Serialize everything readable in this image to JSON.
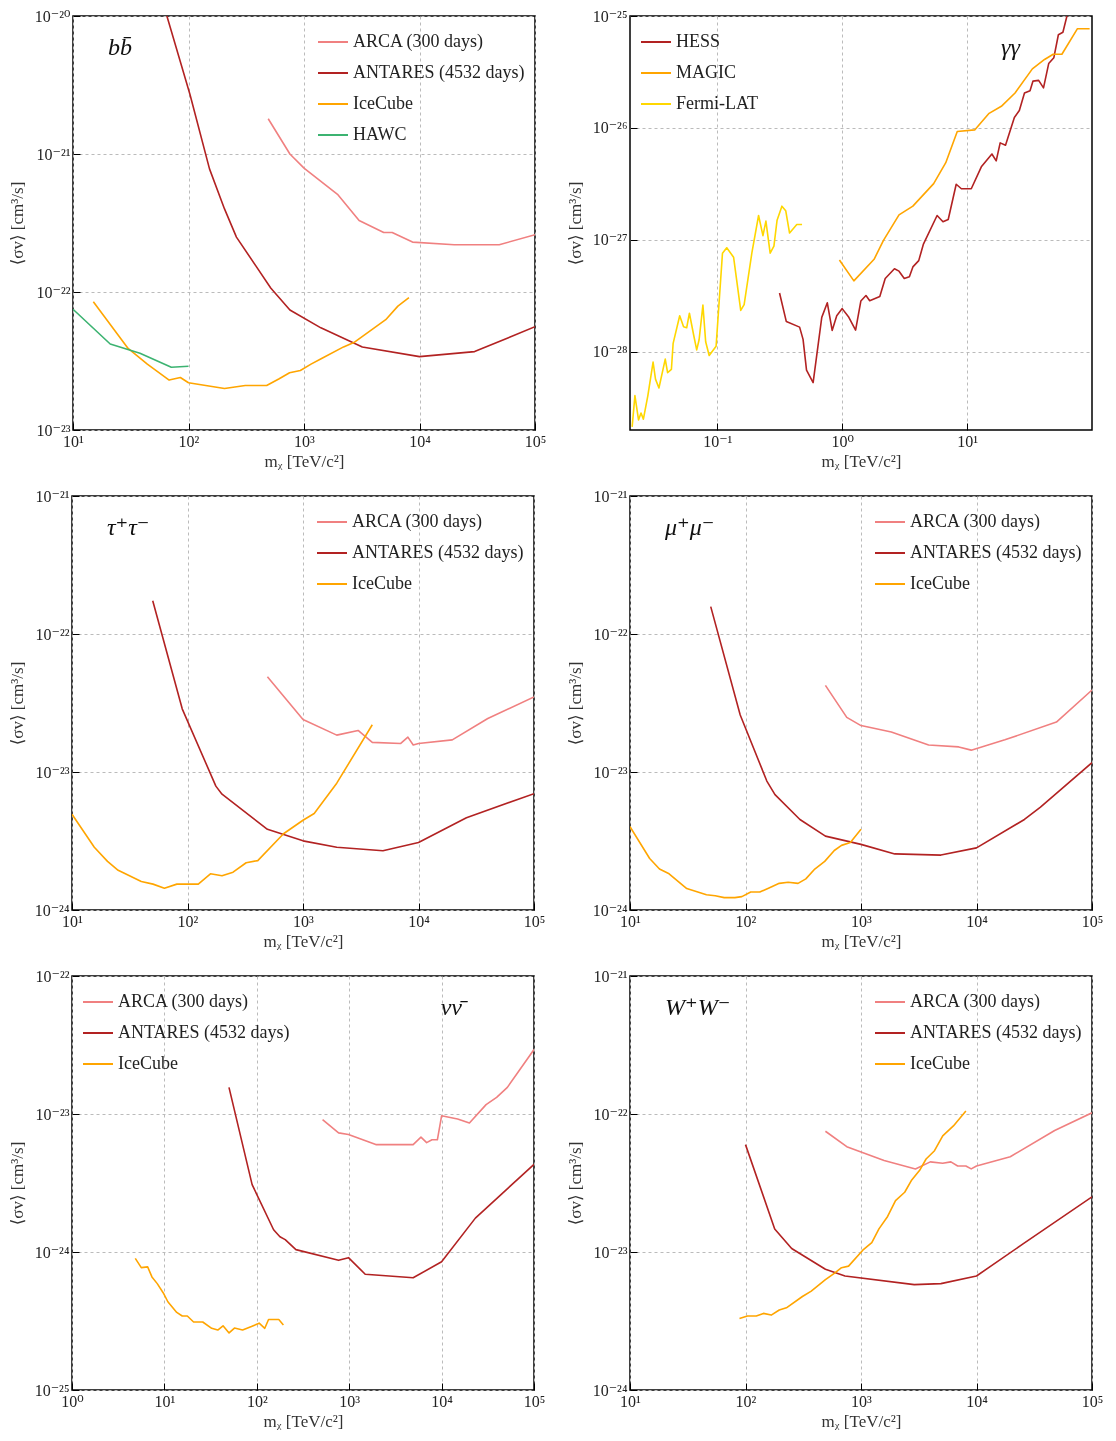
{
  "chart_data": [
    {
      "type": "line",
      "annotations": [
        "bb̄"
      ],
      "xlabel": "mᵪ [TeV/c²]",
      "ylabel": "⟨σv⟩ [cm³/s]",
      "log": "xy",
      "grid": true,
      "legend": "top right",
      "xlim": [
        10,
        100000
      ],
      "ylim": [
        1e-23,
        1e-20
      ],
      "xticks": [
        {
          "value": 10,
          "label": "10¹"
        },
        {
          "value": 100,
          "label": "10²"
        },
        {
          "value": 1000,
          "label": "10³"
        },
        {
          "value": 10000,
          "label": "10⁴"
        },
        {
          "value": 100000,
          "label": "10⁵"
        }
      ],
      "yticks": [
        {
          "value": 1e-23,
          "label": "10⁻²³"
        },
        {
          "value": 1e-22,
          "label": "10⁻²²"
        },
        {
          "value": 1e-21,
          "label": "10⁻²¹"
        },
        {
          "value": 1e-20,
          "label": "10⁻²⁰"
        }
      ],
      "series": [
        {
          "name": "ARCA (300 days)",
          "color": "#f08080",
          "x": [
            490,
            755,
            1000,
            1950,
            3000,
            4900,
            5800,
            8700,
            20000,
            49000,
            100000
          ],
          "values": [
            1.8e-21,
            1e-21,
            7.9e-22,
            5.1e-22,
            3.3e-22,
            2.7e-22,
            2.7e-22,
            2.3e-22,
            2.2e-22,
            2.2e-22,
            2.6e-22
          ]
        },
        {
          "name": "ANTARES (4532 days)",
          "color": "#b22222",
          "x": [
            65,
            103,
            152,
            205,
            260,
            515,
            755,
            1400,
            3200,
            10000,
            30000,
            100000
          ],
          "values": [
            1e-20,
            2.7e-21,
            7.8e-22,
            4e-22,
            2.5e-22,
            1.07e-22,
            7.4e-23,
            5.5e-23,
            4e-23,
            3.4e-23,
            3.7e-23,
            5.6e-23
          ]
        },
        {
          "name": "IceCube",
          "color": "#ffa500",
          "x": [
            15,
            30,
            44,
            68,
            85,
            100,
            205,
            310,
            475,
            610,
            750,
            930,
            1150,
            1420,
            2200,
            2700,
            5100,
            6500,
            8100
          ],
          "values": [
            8.5e-23,
            3.9e-23,
            3e-23,
            2.3e-23,
            2.4e-23,
            2.2e-23,
            2e-23,
            2.1e-23,
            2.1e-23,
            2.35e-23,
            2.6e-23,
            2.7e-23,
            3e-23,
            3.3e-23,
            4e-23,
            4.3e-23,
            6.3e-23,
            7.9e-23,
            9.1e-23
          ]
        },
        {
          "name": "HAWC",
          "color": "#3cb371",
          "x": [
            10,
            21,
            38,
            71,
            100
          ],
          "values": [
            7.5e-23,
            4.2e-23,
            3.6e-23,
            2.85e-23,
            2.9e-23
          ]
        }
      ]
    },
    {
      "type": "line",
      "annotations": [
        "γγ"
      ],
      "xlabel": "mᵪ [TeV/c²]",
      "ylabel": "⟨σv⟩ [cm³/s]",
      "log": "xy",
      "grid": true,
      "legend": "top left",
      "xlim": [
        0.02,
        100
      ],
      "ylim": [
        2e-29,
        1e-25
      ],
      "xticks": [
        {
          "value": 0.1,
          "label": "10⁻¹"
        },
        {
          "value": 1,
          "label": "10⁰"
        },
        {
          "value": 10,
          "label": "10¹"
        }
      ],
      "yticks": [
        {
          "value": 1e-28,
          "label": "10⁻²⁸"
        },
        {
          "value": 1e-27,
          "label": "10⁻²⁷"
        },
        {
          "value": 1e-26,
          "label": "10⁻²⁶"
        },
        {
          "value": 1e-25,
          "label": "10⁻²⁵"
        }
      ],
      "series": [
        {
          "name": "HESS",
          "color": "#b22222",
          "x": [
            0.315,
            0.357,
            0.456,
            0.486,
            0.518,
            0.585,
            0.686,
            0.76,
            0.831,
            0.904,
            1,
            1.13,
            1.28,
            1.41,
            1.55,
            1.66,
            2,
            2.21,
            2.62,
            2.85,
            3.14,
            3.45,
            3.68,
            4.1,
            4.46,
            5.75,
            6.41,
            7.06,
            8.18,
            9,
            10.8,
            13,
            15.8,
            17.1,
            18.4,
            20.3,
            23.9,
            26.2,
            28.8,
            31.9,
            33.7,
            37.4,
            40.9,
            45,
            49.5,
            53.8,
            58.5,
            63
          ],
          "values": [
            3.35e-28,
            1.86e-28,
            1.66e-28,
            1.29e-28,
            6.85e-29,
            5.3e-29,
            2.03e-28,
            2.74e-28,
            1.55e-28,
            2.1e-28,
            2.43e-28,
            2.03e-28,
            1.56e-28,
            2.84e-28,
            3.18e-28,
            2.86e-28,
            3.12e-28,
            4.52e-28,
            5.52e-28,
            5.25e-28,
            4.52e-28,
            4.69e-28,
            5.73e-28,
            6.52e-28,
            9.1e-28,
            1.65e-27,
            1.45e-27,
            1.52e-27,
            3.14e-27,
            2.86e-27,
            2.86e-27,
            4.49e-27,
            5.85e-27,
            5.07e-27,
            7.35e-27,
            7e-27,
            1.24e-26,
            1.43e-26,
            2.05e-26,
            2.15e-26,
            2.62e-26,
            2.66e-26,
            2.28e-26,
            3.76e-26,
            4.24e-26,
            6.8e-26,
            7.15e-26,
            1e-25
          ]
        },
        {
          "name": "MAGIC",
          "color": "#ffa500",
          "x": [
            0.95,
            1.24,
            1.8,
            2.14,
            2.85,
            3.68,
            5.4,
            6.75,
            8.34,
            11.5,
            15,
            18.8,
            24.2,
            33.3,
            41.7,
            48.9,
            57.4,
            76.5,
            95.7
          ],
          "values": [
            6.6e-28,
            4.3e-28,
            6.7e-28,
            9.9e-28,
            1.67e-27,
            2e-27,
            3.18e-27,
            4.89e-27,
            9.3e-27,
            9.6e-27,
            1.35e-26,
            1.56e-26,
            2.05e-26,
            3.37e-26,
            4.09e-26,
            4.55e-26,
            4.55e-26,
            7.7e-26,
            7.7e-26
          ]
        },
        {
          "name": "Fermi-LAT",
          "color": "#ffd700",
          "x": [
            0.0208,
            0.0219,
            0.0234,
            0.0245,
            0.0256,
            0.0278,
            0.0306,
            0.032,
            0.0341,
            0.0383,
            0.04,
            0.0429,
            0.0443,
            0.05,
            0.0537,
            0.0569,
            0.0598,
            0.0646,
            0.0684,
            0.0715,
            0.0767,
            0.0807,
            0.0861,
            0.0978,
            0.11,
            0.119,
            0.135,
            0.154,
            0.164,
            0.189,
            0.214,
            0.232,
            0.245,
            0.265,
            0.284,
            0.301,
            0.329,
            0.353,
            0.379,
            0.433,
            0.477
          ],
          "values": [
            2.13e-29,
            4.06e-29,
            2.46e-29,
            2.84e-29,
            2.5e-29,
            4.06e-29,
            8.1e-29,
            5.7e-29,
            4.75e-29,
            8.6e-29,
            6.5e-29,
            6.95e-29,
            1.19e-28,
            2.1e-28,
            1.67e-28,
            1.64e-28,
            2.21e-28,
            1.42e-28,
            1.04e-28,
            1.28e-28,
            2.61e-28,
            1.23e-28,
            9.25e-29,
            1.12e-28,
            7.6e-28,
            8.5e-28,
            7e-28,
            2.34e-28,
            2.64e-28,
            7.6e-28,
            1.65e-27,
            1.09e-27,
            1.47e-27,
            7.6e-28,
            8.8e-28,
            1.5e-27,
            2e-27,
            1.82e-27,
            1.15e-27,
            1.37e-27,
            1.37e-27
          ]
        }
      ]
    },
    {
      "type": "line",
      "annotations": [
        "τ⁺τ⁻"
      ],
      "xlabel": "mᵪ [TeV/c²]",
      "ylabel": "⟨σv⟩ [cm³/s]",
      "log": "xy",
      "grid": true,
      "legend": "top right",
      "xlim": [
        10,
        100000
      ],
      "ylim": [
        1e-24,
        1e-21
      ],
      "xticks": [
        {
          "value": 10,
          "label": "10¹"
        },
        {
          "value": 100,
          "label": "10²"
        },
        {
          "value": 1000,
          "label": "10³"
        },
        {
          "value": 10000,
          "label": "10⁴"
        },
        {
          "value": 100000,
          "label": "10⁵"
        }
      ],
      "yticks": [
        {
          "value": 1e-24,
          "label": "10⁻²⁴"
        },
        {
          "value": 1e-23,
          "label": "10⁻²³"
        },
        {
          "value": 1e-22,
          "label": "10⁻²²"
        },
        {
          "value": 1e-21,
          "label": "10⁻²¹"
        }
      ],
      "series": [
        {
          "name": "ARCA (300 days)",
          "color": "#f08080",
          "x": [
            492,
            1000,
            1960,
            3000,
            3980,
            7020,
            8090,
            9000,
            10000,
            19600,
            39800,
            100000
          ],
          "values": [
            4.9e-23,
            2.4e-23,
            1.85e-23,
            2e-23,
            1.64e-23,
            1.61e-23,
            1.79e-23,
            1.57e-23,
            1.61e-23,
            1.71e-23,
            2.44e-23,
            3.5e-23
          ]
        },
        {
          "name": "ANTARES (4532 days)",
          "color": "#b22222",
          "x": [
            50,
            90,
            176,
            199,
            492,
            1000,
            1960,
            4920,
            10000,
            26000,
            100000
          ],
          "values": [
            1.74e-22,
            2.87e-23,
            7.9e-24,
            6.9e-24,
            3.84e-24,
            3.17e-24,
            2.85e-24,
            2.69e-24,
            3.08e-24,
            4.66e-24,
            6.97e-24
          ]
        },
        {
          "name": "IceCube",
          "color": "#ffa500",
          "x": [
            10,
            15.6,
            20.3,
            25.1,
            39.8,
            50.3,
            63.1,
            80.9,
            124,
            158,
            199,
            248,
            322,
            406,
            678,
            1000,
            1250,
            1960,
            3980
          ],
          "values": [
            4.94e-24,
            2.85e-24,
            2.25e-24,
            1.94e-24,
            1.61e-24,
            1.54e-24,
            1.44e-24,
            1.54e-24,
            1.54e-24,
            1.83e-24,
            1.77e-24,
            1.88e-24,
            2.2e-24,
            2.28e-24,
            3.57e-24,
            4.47e-24,
            5e-24,
            8.3e-24,
            2.2e-23
          ]
        }
      ]
    },
    {
      "type": "line",
      "annotations": [
        "μ⁺μ⁻"
      ],
      "xlabel": "mᵪ [TeV/c²]",
      "ylabel": "⟨σv⟩ [cm³/s]",
      "log": "xy",
      "grid": true,
      "legend": "top right",
      "xlim": [
        10,
        100000
      ],
      "ylim": [
        1e-24,
        1e-21
      ],
      "xticks": [
        {
          "value": 10,
          "label": "10¹"
        },
        {
          "value": 100,
          "label": "10²"
        },
        {
          "value": 1000,
          "label": "10³"
        },
        {
          "value": 10000,
          "label": "10⁴"
        },
        {
          "value": 100000,
          "label": "10⁵"
        }
      ],
      "yticks": [
        {
          "value": 1e-24,
          "label": "10⁻²⁴"
        },
        {
          "value": 1e-23,
          "label": "10⁻²³"
        },
        {
          "value": 1e-22,
          "label": "10⁻²²"
        },
        {
          "value": 1e-21,
          "label": "10⁻²¹"
        }
      ],
      "series": [
        {
          "name": "ARCA (300 days)",
          "color": "#f08080",
          "x": [
            492,
            753,
            1000,
            1830,
            3850,
            7020,
            9000,
            17600,
            49200,
            100000
          ],
          "values": [
            4.24e-23,
            2.49e-23,
            2.17e-23,
            1.95e-23,
            1.57e-23,
            1.52e-23,
            1.44e-23,
            1.71e-23,
            2.3e-23,
            3.93e-23
          ]
        },
        {
          "name": "ANTARES (4532 days)",
          "color": "#b22222",
          "x": [
            50,
            90,
            153,
            180,
            296,
            492,
            1000,
            1960,
            4920,
            10000,
            26000,
            35800,
            100000
          ],
          "values": [
            1.58e-22,
            2.59e-23,
            8.6e-24,
            6.85e-24,
            4.53e-24,
            3.43e-24,
            2.99e-24,
            2.55e-24,
            2.5e-24,
            2.82e-24,
            4.53e-24,
            5.57e-24,
            1.17e-23
          ]
        },
        {
          "name": "IceCube",
          "color": "#ffa500",
          "x": [
            10,
            14.8,
            18,
            21.8,
            31,
            45.9,
            54.7,
            65.4,
            80.9,
            93,
            111,
            133,
            158,
            196,
            234,
            285,
            333,
            398,
            485,
            587,
            678,
            809,
            1000
          ],
          "values": [
            4.02e-24,
            2.36e-24,
            1.98e-24,
            1.83e-24,
            1.43e-24,
            1.29e-24,
            1.27e-24,
            1.23e-24,
            1.23e-24,
            1.25e-24,
            1.35e-24,
            1.35e-24,
            1.44e-24,
            1.56e-24,
            1.59e-24,
            1.56e-24,
            1.68e-24,
            1.98e-24,
            2.25e-24,
            2.7e-24,
            2.94e-24,
            3.08e-24,
            3.84e-24
          ]
        }
      ]
    },
    {
      "type": "line",
      "annotations": [
        "νν̄"
      ],
      "xlabel": "mᵪ [TeV/c²]",
      "ylabel": "⟨σv⟩ [cm³/s]",
      "log": "xy",
      "grid": true,
      "legend": "top left",
      "xlim": [
        1,
        100000
      ],
      "ylim": [
        1e-25,
        1e-22
      ],
      "xticks": [
        {
          "value": 1,
          "label": "10⁰"
        },
        {
          "value": 10,
          "label": "10¹"
        },
        {
          "value": 100,
          "label": "10²"
        },
        {
          "value": 1000,
          "label": "10³"
        },
        {
          "value": 10000,
          "label": "10⁴"
        },
        {
          "value": 100000,
          "label": "10⁵"
        }
      ],
      "yticks": [
        {
          "value": 1e-25,
          "label": "10⁻²⁵"
        },
        {
          "value": 1e-24,
          "label": "10⁻²⁴"
        },
        {
          "value": 1e-23,
          "label": "10⁻²³"
        },
        {
          "value": 1e-22,
          "label": "10⁻²²"
        }
      ],
      "series": [
        {
          "name": "ARCA (300 days)",
          "color": "#f08080",
          "x": [
            515,
            767,
            982,
            1940,
            4920,
            5980,
            6890,
            7870,
            9000,
            10000,
            14900,
            20000,
            30300,
            39400,
            51500,
            100000
          ],
          "values": [
            9.1e-24,
            7.3e-24,
            7.1e-24,
            6e-24,
            6e-24,
            6.8e-24,
            6.2e-24,
            6.5e-24,
            6.5e-24,
            9.7e-24,
            9.2e-24,
            8.6e-24,
            1.17e-23,
            1.32e-23,
            1.56e-23,
            2.93e-23
          ]
        },
        {
          "name": "ANTARES (4532 days)",
          "color": "#b22222",
          "x": [
            50,
            89,
            152,
            178,
            203,
            265,
            767,
            982,
            1490,
            4920,
            10000,
            23200,
            100000
          ],
          "values": [
            1.56e-23,
            3.08e-24,
            1.45e-24,
            1.29e-24,
            1.23e-24,
            1.04e-24,
            8.7e-25,
            9.1e-25,
            6.9e-25,
            6.5e-25,
            8.5e-25,
            1.76e-24,
            4.32e-24
          ]
        },
        {
          "name": "IceCube",
          "color": "#ffa500",
          "x": [
            4.84,
            5.62,
            6.59,
            7.33,
            8.37,
            9.73,
            10.9,
            13.6,
            15.6,
            17.7,
            20.7,
            26,
            32.5,
            37.8,
            43.1,
            50.1,
            57.3,
            70.2,
            87.5,
            106,
            122,
            134,
            173,
            194
          ],
          "values": [
            9e-25,
            7.7e-25,
            7.8e-25,
            6.6e-25,
            5.9e-25,
            5.05e-25,
            4.36e-25,
            3.65e-25,
            3.44e-25,
            3.44e-25,
            3.11e-25,
            3.11e-25,
            2.8e-25,
            2.72e-25,
            2.92e-25,
            2.59e-25,
            2.81e-25,
            2.72e-25,
            2.88e-25,
            3.05e-25,
            2.8e-25,
            3.24e-25,
            3.24e-25,
            2.96e-25
          ]
        }
      ]
    },
    {
      "type": "line",
      "annotations": [
        "W⁺W⁻"
      ],
      "xlabel": "mᵪ [TeV/c²]",
      "ylabel": "⟨σv⟩ [cm³/s]",
      "log": "xy",
      "grid": true,
      "legend": "top right",
      "xlim": [
        10,
        100000
      ],
      "ylim": [
        1e-24,
        1e-21
      ],
      "xticks": [
        {
          "value": 10,
          "label": "10¹"
        },
        {
          "value": 100,
          "label": "10²"
        },
        {
          "value": 1000,
          "label": "10³"
        },
        {
          "value": 10000,
          "label": "10⁴"
        },
        {
          "value": 100000,
          "label": "10⁵"
        }
      ],
      "yticks": [
        {
          "value": 1e-24,
          "label": "10⁻²⁴"
        },
        {
          "value": 1e-23,
          "label": "10⁻²³"
        },
        {
          "value": 1e-22,
          "label": "10⁻²²"
        },
        {
          "value": 1e-21,
          "label": "10⁻²¹"
        }
      ],
      "series": [
        {
          "name": "ARCA (300 days)",
          "color": "#f08080",
          "x": [
            492,
            753,
            1585,
            2960,
            3980,
            5100,
            6000,
            6870,
            8090,
            9000,
            10000,
            19600,
            47500,
            100000
          ],
          "values": [
            7.5e-23,
            5.8e-23,
            4.6e-23,
            4e-23,
            4.5e-23,
            4.4e-23,
            4.5e-23,
            4.2e-23,
            4.2e-23,
            4e-23,
            4.2e-23,
            4.9e-23,
            7.6e-23,
            1.02e-22
          ]
        },
        {
          "name": "ANTARES (4532 days)",
          "color": "#b22222",
          "x": [
            100,
            179,
            251,
            492,
            727,
            2890,
            4920,
            10000,
            25100,
            100000
          ],
          "values": [
            6e-23,
            1.47e-23,
            1.06e-23,
            7.5e-24,
            6.7e-24,
            5.8e-24,
            5.9e-24,
            6.7e-24,
            1.14e-23,
            2.51e-23
          ]
        },
        {
          "name": "IceCube",
          "color": "#ffa500",
          "x": [
            88.7,
            104,
            124,
            143,
            167,
            196,
            226,
            311,
            371,
            492,
            587,
            678,
            780,
            1036,
            1240,
            1430,
            1700,
            1990,
            2390,
            2750,
            3220,
            3660,
            4330,
            5100,
            6310,
            8090
          ],
          "values": [
            3.3e-24,
            3.44e-24,
            3.44e-24,
            3.59e-24,
            3.49e-24,
            3.8e-24,
            3.94e-24,
            4.76e-24,
            5.21e-24,
            6.3e-24,
            7e-24,
            7.7e-24,
            7.9e-24,
            1.03e-23,
            1.17e-23,
            1.47e-23,
            1.81e-23,
            2.36e-23,
            2.71e-23,
            3.33e-23,
            3.91e-23,
            4.72e-23,
            5.42e-23,
            6.95e-23,
            8.2e-23,
            1.05e-22
          ]
        }
      ]
    }
  ]
}
